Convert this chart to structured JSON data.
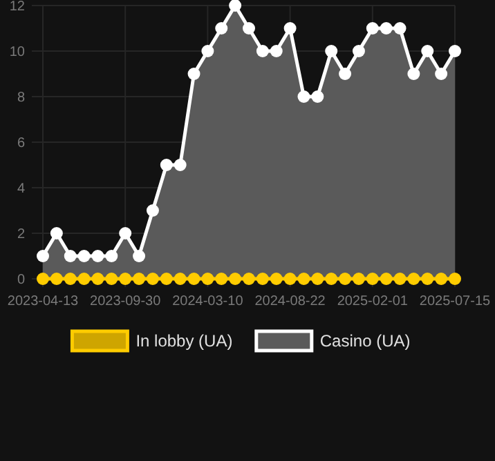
{
  "chart_data": {
    "type": "line",
    "categories": [
      "2023-04-13",
      null,
      null,
      null,
      null,
      null,
      "2023-09-30",
      null,
      null,
      null,
      null,
      null,
      "2024-03-10",
      null,
      null,
      null,
      null,
      null,
      "2024-08-22",
      null,
      null,
      null,
      null,
      null,
      "2025-02-01",
      null,
      null,
      null,
      null,
      null,
      "2025-07-15"
    ],
    "series": [
      {
        "name": "In lobby (UA)",
        "color": "#ffcc00",
        "values": [
          0,
          0,
          0,
          0,
          0,
          0,
          0,
          0,
          0,
          0,
          0,
          0,
          0,
          0,
          0,
          0,
          0,
          0,
          0,
          0,
          0,
          0,
          0,
          0,
          0,
          0,
          0,
          0,
          0,
          0,
          0
        ]
      },
      {
        "name": "Casino (UA)",
        "type": "area",
        "color": "#ffffff",
        "values": [
          1,
          2,
          1,
          1,
          1,
          1,
          2,
          1,
          3,
          5,
          5,
          9,
          10,
          11,
          12,
          11,
          10,
          10,
          11,
          8,
          8,
          10,
          9,
          10,
          11,
          11,
          11,
          9,
          10,
          9,
          10
        ]
      }
    ],
    "ylim": [
      0,
      12
    ],
    "yticks": [
      0,
      2,
      4,
      6,
      8,
      10,
      12
    ],
    "grid": true,
    "legend": "bottom",
    "marker": "circle"
  }
}
